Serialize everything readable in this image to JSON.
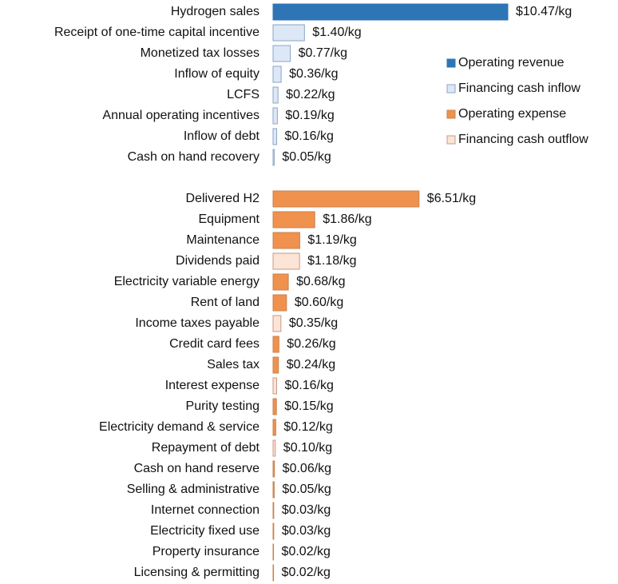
{
  "chart_data": {
    "type": "bar",
    "orientation": "horizontal",
    "categories": [
      "Hydrogen sales",
      "Receipt of one-time capital incentive",
      "Monetized tax losses",
      "Inflow of equity",
      "LCFS",
      "Annual operating incentives",
      "Inflow of debt",
      "Cash on hand recovery",
      null,
      "Delivered H2",
      "Equipment",
      "Maintenance",
      "Dividends paid",
      "Electricity variable energy",
      "Rent of land",
      "Income taxes payable",
      "Credit card fees",
      "Sales tax",
      "Interest expense",
      "Purity testing",
      "Electricity demand & service",
      "Repayment of debt",
      "Cash on hand reserve",
      "Selling & administrative",
      "Internet connection",
      "Electricity fixed use",
      "Property insurance",
      "Licensing & permitting"
    ],
    "series": [
      {
        "name": "Operating revenue",
        "color": "#2e75b6",
        "edgecolor": "#2e75b6",
        "values": [
          10.47,
          null,
          null,
          null,
          null,
          null,
          null,
          null,
          null,
          null,
          null,
          null,
          null,
          null,
          null,
          null,
          null,
          null,
          null,
          null,
          null,
          null,
          null,
          null,
          null,
          null,
          null,
          null
        ],
        "value_labels": [
          "$10.47/kg",
          null,
          null,
          null,
          null,
          null,
          null,
          null,
          null,
          null,
          null,
          null,
          null,
          null,
          null,
          null,
          null,
          null,
          null,
          null,
          null,
          null,
          null,
          null,
          null,
          null,
          null,
          null
        ]
      },
      {
        "name": "Financing cash inflow",
        "color": "#dde8f6",
        "edgecolor": "#8aa3c8",
        "values": [
          null,
          1.4,
          0.77,
          0.36,
          0.22,
          0.19,
          0.16,
          0.05,
          null,
          null,
          null,
          null,
          null,
          null,
          null,
          null,
          null,
          null,
          null,
          null,
          null,
          null,
          null,
          null,
          null,
          null,
          null,
          null
        ],
        "value_labels": [
          null,
          "$1.40/kg",
          "$0.77/kg",
          "$0.36/kg",
          "$0.22/kg",
          "$0.19/kg",
          "$0.16/kg",
          "$0.05/kg",
          null,
          null,
          null,
          null,
          null,
          null,
          null,
          null,
          null,
          null,
          null,
          null,
          null,
          null,
          null,
          null,
          null,
          null,
          null,
          null
        ]
      },
      {
        "name": "Operating expense",
        "color": "#f0914e",
        "edgecolor": "#c8824e",
        "values": [
          null,
          null,
          null,
          null,
          null,
          null,
          null,
          null,
          null,
          6.51,
          1.86,
          1.19,
          null,
          0.68,
          0.6,
          null,
          0.26,
          0.24,
          null,
          0.15,
          0.12,
          null,
          0.06,
          0.05,
          0.03,
          0.03,
          0.02,
          0.02
        ],
        "value_labels": [
          null,
          null,
          null,
          null,
          null,
          null,
          null,
          null,
          null,
          "$6.51/kg",
          "$1.86/kg",
          "$1.19/kg",
          null,
          "$0.68/kg",
          "$0.60/kg",
          null,
          "$0.26/kg",
          "$0.24/kg",
          null,
          "$0.15/kg",
          "$0.12/kg",
          null,
          "$0.06/kg",
          "$0.05/kg",
          "$0.03/kg",
          "$0.03/kg",
          "$0.02/kg",
          "$0.02/kg"
        ]
      },
      {
        "name": "Financing cash outflow",
        "color": "#fce4d6",
        "edgecolor": "#c89a86",
        "values": [
          null,
          null,
          null,
          null,
          null,
          null,
          null,
          null,
          null,
          null,
          null,
          null,
          1.18,
          null,
          null,
          0.35,
          null,
          null,
          0.16,
          null,
          null,
          0.1,
          null,
          null,
          null,
          null,
          null,
          null
        ],
        "value_labels": [
          null,
          null,
          null,
          null,
          null,
          null,
          null,
          null,
          null,
          null,
          null,
          null,
          "$1.18/kg",
          null,
          null,
          "$0.35/kg",
          null,
          null,
          "$0.16/kg",
          null,
          null,
          "$0.10/kg",
          null,
          null,
          null,
          null,
          null,
          null
        ]
      }
    ],
    "legend": "right"
  }
}
